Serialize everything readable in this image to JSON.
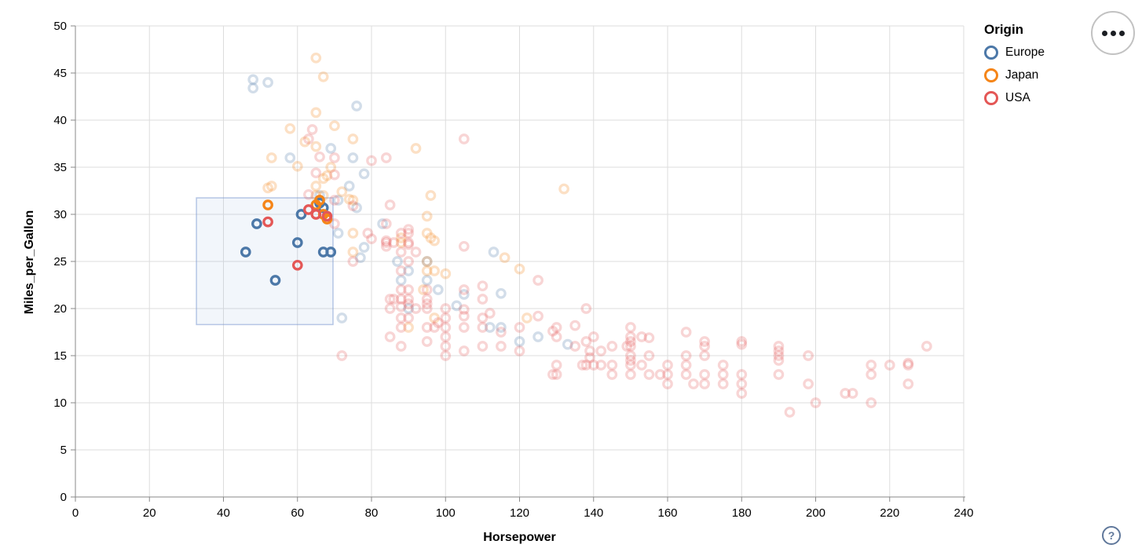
{
  "controls": {
    "menu_icon": "ellipsis",
    "help_label": "?"
  },
  "chart_data": {
    "type": "scatter",
    "title": "",
    "xlabel": "Horsepower",
    "ylabel": "Miles_per_Gallon",
    "xlim": [
      0,
      240
    ],
    "ylim": [
      0,
      50
    ],
    "xticks": [
      0,
      20,
      40,
      60,
      80,
      100,
      120,
      140,
      160,
      180,
      200,
      220,
      240
    ],
    "yticks": [
      0,
      5,
      10,
      15,
      20,
      25,
      30,
      35,
      40,
      45,
      50
    ],
    "grid": true,
    "grid_color": "#dddddd",
    "axis_color": "#888888",
    "legend": {
      "title": "Origin",
      "position": "top-right",
      "entries": [
        {
          "key": "E",
          "label": "Europe",
          "color": "#4c78a8"
        },
        {
          "key": "J",
          "label": "Japan",
          "color": "#f58518"
        },
        {
          "key": "U",
          "label": "USA",
          "color": "#e45756"
        }
      ]
    },
    "brush": {
      "hp_extent": [
        32.7,
        69.6
      ],
      "mpg_extent": [
        18.3,
        31.75
      ],
      "fill": "rgba(130,165,220,0.10)",
      "stroke": "rgba(125,155,210,0.55)"
    },
    "selected_opacity": 1,
    "unselected_opacity": 0.25,
    "point_radius": 5.2,
    "point_stroke_width": 3.3,
    "points": [
      [
        46,
        26,
        "E"
      ],
      [
        49,
        29,
        "E"
      ],
      [
        54,
        23,
        "E"
      ],
      [
        60,
        27,
        "E"
      ],
      [
        61,
        30,
        "E"
      ],
      [
        66,
        31.2,
        "E"
      ],
      [
        67,
        30.7,
        "E"
      ],
      [
        67,
        26,
        "E"
      ],
      [
        69,
        26,
        "E"
      ],
      [
        48,
        44.3,
        "E"
      ],
      [
        48,
        43.4,
        "E"
      ],
      [
        52,
        44,
        "E"
      ],
      [
        76,
        41.5,
        "E"
      ],
      [
        83,
        29,
        "E"
      ],
      [
        87,
        25,
        "E"
      ],
      [
        90,
        24,
        "E"
      ],
      [
        95,
        25,
        "E"
      ],
      [
        113,
        26,
        "E"
      ],
      [
        71,
        28,
        "E"
      ],
      [
        78,
        34.3,
        "E"
      ],
      [
        75,
        36,
        "E"
      ],
      [
        58,
        36,
        "E"
      ],
      [
        77,
        25.4,
        "E"
      ],
      [
        103,
        20.3,
        "E"
      ],
      [
        105,
        21.5,
        "E"
      ],
      [
        112,
        18,
        "E"
      ],
      [
        98,
        22,
        "E"
      ],
      [
        125,
        17,
        "E"
      ],
      [
        133,
        16.2,
        "E"
      ],
      [
        115,
        18,
        "E"
      ],
      [
        115,
        21.6,
        "E"
      ],
      [
        120,
        16.5,
        "E"
      ],
      [
        95,
        23,
        "E"
      ],
      [
        88,
        23,
        "E"
      ],
      [
        74,
        33,
        "E"
      ],
      [
        71,
        31.5,
        "E"
      ],
      [
        69,
        37,
        "E"
      ],
      [
        76,
        30.7,
        "E"
      ],
      [
        66,
        32,
        "E"
      ],
      [
        78,
        26.5,
        "E"
      ],
      [
        90,
        20,
        "E"
      ],
      [
        72,
        19,
        "E"
      ],
      [
        52,
        31,
        "J"
      ],
      [
        65,
        31,
        "J"
      ],
      [
        66,
        31.5,
        "J"
      ],
      [
        67,
        30,
        "J"
      ],
      [
        68,
        29.5,
        "J"
      ],
      [
        95,
        24,
        "J"
      ],
      [
        88,
        27,
        "J"
      ],
      [
        88,
        27.5,
        "J"
      ],
      [
        65,
        32,
        "J"
      ],
      [
        69,
        35,
        "J"
      ],
      [
        65,
        46.6,
        "J"
      ],
      [
        67,
        44.6,
        "J"
      ],
      [
        65,
        40.8,
        "J"
      ],
      [
        58,
        39.1,
        "J"
      ],
      [
        70,
        39.4,
        "J"
      ],
      [
        53,
        36,
        "J"
      ],
      [
        65,
        37.2,
        "J"
      ],
      [
        62,
        37.7,
        "J"
      ],
      [
        60,
        35.1,
        "J"
      ],
      [
        68,
        34.1,
        "J"
      ],
      [
        65,
        33,
        "J"
      ],
      [
        53,
        33,
        "J"
      ],
      [
        52,
        32.8,
        "J"
      ],
      [
        95,
        25,
        "J"
      ],
      [
        97,
        27.2,
        "J"
      ],
      [
        75,
        31.5,
        "J"
      ],
      [
        74,
        31.6,
        "J"
      ],
      [
        95,
        28,
        "J"
      ],
      [
        96,
        32,
        "J"
      ],
      [
        72,
        32.4,
        "J"
      ],
      [
        75,
        38,
        "J"
      ],
      [
        97,
        24,
        "J"
      ],
      [
        75,
        28,
        "J"
      ],
      [
        75,
        26,
        "J"
      ],
      [
        67,
        33.8,
        "J"
      ],
      [
        67,
        32,
        "J"
      ],
      [
        97,
        19,
        "J"
      ],
      [
        90,
        18,
        "J"
      ],
      [
        100,
        23.7,
        "J"
      ],
      [
        120,
        24.2,
        "J"
      ],
      [
        116,
        25.4,
        "J"
      ],
      [
        132,
        32.7,
        "J"
      ],
      [
        95,
        29.8,
        "J"
      ],
      [
        94,
        22,
        "J"
      ],
      [
        92,
        37,
        "J"
      ],
      [
        96,
        27.5,
        "J"
      ],
      [
        122,
        19,
        "J"
      ],
      [
        52,
        29.2,
        "U"
      ],
      [
        60,
        24.6,
        "U"
      ],
      [
        63,
        30.5,
        "U"
      ],
      [
        65,
        30,
        "U"
      ],
      [
        68,
        29.8,
        "U"
      ],
      [
        63,
        32.1,
        "U"
      ],
      [
        70,
        29,
        "U"
      ],
      [
        75,
        30.9,
        "U"
      ],
      [
        70,
        34.2,
        "U"
      ],
      [
        70,
        31.5,
        "U"
      ],
      [
        66,
        36.1,
        "U"
      ],
      [
        65,
        34.4,
        "U"
      ],
      [
        64,
        39,
        "U"
      ],
      [
        63,
        38,
        "U"
      ],
      [
        70,
        36,
        "U"
      ],
      [
        80,
        35.7,
        "U"
      ],
      [
        79,
        28,
        "U"
      ],
      [
        84,
        36,
        "U"
      ],
      [
        90,
        28,
        "U"
      ],
      [
        90,
        25,
        "U"
      ],
      [
        88,
        24,
        "U"
      ],
      [
        75,
        25,
        "U"
      ],
      [
        86,
        21,
        "U"
      ],
      [
        90,
        28.4,
        "U"
      ],
      [
        90,
        26.8,
        "U"
      ],
      [
        84,
        26.6,
        "U"
      ],
      [
        88,
        26,
        "U"
      ],
      [
        84,
        29,
        "U"
      ],
      [
        84,
        27,
        "U"
      ],
      [
        86,
        27,
        "U"
      ],
      [
        92,
        26,
        "U"
      ],
      [
        84,
        27.2,
        "U"
      ],
      [
        90,
        27,
        "U"
      ],
      [
        88,
        22,
        "U"
      ],
      [
        95,
        20.5,
        "U"
      ],
      [
        80,
        27.4,
        "U"
      ],
      [
        88,
        28,
        "U"
      ],
      [
        85,
        31,
        "U"
      ],
      [
        105,
        38,
        "U"
      ],
      [
        105,
        26.6,
        "U"
      ],
      [
        110,
        22.4,
        "U"
      ],
      [
        72,
        15,
        "U"
      ],
      [
        85,
        20,
        "U"
      ],
      [
        88,
        19,
        "U"
      ],
      [
        88,
        18,
        "U"
      ],
      [
        88,
        20.2,
        "U"
      ],
      [
        90,
        19,
        "U"
      ],
      [
        90,
        20.5,
        "U"
      ],
      [
        95,
        20,
        "U"
      ],
      [
        95,
        18,
        "U"
      ],
      [
        98,
        18.5,
        "U"
      ],
      [
        100,
        18,
        "U"
      ],
      [
        100,
        19,
        "U"
      ],
      [
        100,
        20,
        "U"
      ],
      [
        100,
        16,
        "U"
      ],
      [
        105,
        18,
        "U"
      ],
      [
        105,
        19.2,
        "U"
      ],
      [
        105,
        19.9,
        "U"
      ],
      [
        110,
        18,
        "U"
      ],
      [
        110,
        19,
        "U"
      ],
      [
        110,
        21,
        "U"
      ],
      [
        112,
        19.5,
        "U"
      ],
      [
        115,
        17.5,
        "U"
      ],
      [
        95,
        21,
        "U"
      ],
      [
        90,
        22,
        "U"
      ],
      [
        88,
        21,
        "U"
      ],
      [
        92,
        20,
        "U"
      ],
      [
        97,
        18,
        "U"
      ],
      [
        85,
        21,
        "U"
      ],
      [
        90,
        21,
        "U"
      ],
      [
        95,
        22,
        "U"
      ],
      [
        100,
        17,
        "U"
      ],
      [
        105,
        22,
        "U"
      ],
      [
        85,
        17,
        "U"
      ],
      [
        88,
        16,
        "U"
      ],
      [
        95,
        16.5,
        "U"
      ],
      [
        100,
        15,
        "U"
      ],
      [
        105,
        15.5,
        "U"
      ],
      [
        110,
        16,
        "U"
      ],
      [
        115,
        16,
        "U"
      ],
      [
        130,
        18,
        "U"
      ],
      [
        165,
        15,
        "U"
      ],
      [
        150,
        18,
        "U"
      ],
      [
        150,
        16,
        "U"
      ],
      [
        140,
        17,
        "U"
      ],
      [
        198,
        15,
        "U"
      ],
      [
        220,
        14,
        "U"
      ],
      [
        215,
        14,
        "U"
      ],
      [
        225,
        14,
        "U"
      ],
      [
        190,
        15,
        "U"
      ],
      [
        170,
        15,
        "U"
      ],
      [
        160,
        14,
        "U"
      ],
      [
        150,
        15,
        "U"
      ],
      [
        225,
        14.2,
        "U"
      ],
      [
        215,
        10,
        "U"
      ],
      [
        200,
        10,
        "U"
      ],
      [
        210,
        11,
        "U"
      ],
      [
        193,
        9,
        "U"
      ],
      [
        165,
        14,
        "U"
      ],
      [
        175,
        14,
        "U"
      ],
      [
        153,
        14,
        "U"
      ],
      [
        150,
        14,
        "U"
      ],
      [
        180,
        12,
        "U"
      ],
      [
        170,
        13,
        "U"
      ],
      [
        175,
        13,
        "U"
      ],
      [
        150,
        13,
        "U"
      ],
      [
        180,
        13,
        "U"
      ],
      [
        170,
        12,
        "U"
      ],
      [
        208,
        11,
        "U"
      ],
      [
        155,
        13,
        "U"
      ],
      [
        160,
        12,
        "U"
      ],
      [
        190,
        13,
        "U"
      ],
      [
        130,
        13,
        "U"
      ],
      [
        140,
        14,
        "U"
      ],
      [
        145,
        13,
        "U"
      ],
      [
        137,
        14,
        "U"
      ],
      [
        158,
        13,
        "U"
      ],
      [
        145,
        14,
        "U"
      ],
      [
        230,
        16,
        "U"
      ],
      [
        155,
        15,
        "U"
      ],
      [
        142,
        14,
        "U"
      ],
      [
        138,
        14,
        "U"
      ],
      [
        150,
        14.5,
        "U"
      ],
      [
        215,
        13,
        "U"
      ],
      [
        167,
        12,
        "U"
      ],
      [
        190,
        15.5,
        "U"
      ],
      [
        225,
        12,
        "U"
      ],
      [
        150,
        16.5,
        "U"
      ],
      [
        150,
        17,
        "U"
      ],
      [
        129,
        13,
        "U"
      ],
      [
        120,
        15.5,
        "U"
      ],
      [
        129,
        17.6,
        "U"
      ],
      [
        138,
        16.5,
        "U"
      ],
      [
        135,
        18.2,
        "U"
      ],
      [
        155,
        16.9,
        "U"
      ],
      [
        142,
        15.5,
        "U"
      ],
      [
        130,
        17,
        "U"
      ],
      [
        149,
        16,
        "U"
      ],
      [
        125,
        23,
        "U"
      ],
      [
        125,
        19.2,
        "U"
      ],
      [
        120,
        18,
        "U"
      ],
      [
        130,
        14,
        "U"
      ],
      [
        138,
        20,
        "U"
      ],
      [
        139,
        15.5,
        "U"
      ],
      [
        139,
        14.8,
        "U"
      ],
      [
        153,
        17,
        "U"
      ],
      [
        165,
        13,
        "U"
      ],
      [
        165,
        17.5,
        "U"
      ],
      [
        170,
        16.5,
        "U"
      ],
      [
        180,
        11,
        "U"
      ],
      [
        198,
        12,
        "U"
      ],
      [
        190,
        16,
        "U"
      ],
      [
        190,
        14.5,
        "U"
      ],
      [
        180,
        16.5,
        "U"
      ],
      [
        180,
        16.2,
        "U"
      ],
      [
        175,
        12,
        "U"
      ],
      [
        135,
        16,
        "U"
      ],
      [
        145,
        16,
        "U"
      ],
      [
        160,
        13,
        "U"
      ],
      [
        170,
        16,
        "U"
      ]
    ]
  }
}
